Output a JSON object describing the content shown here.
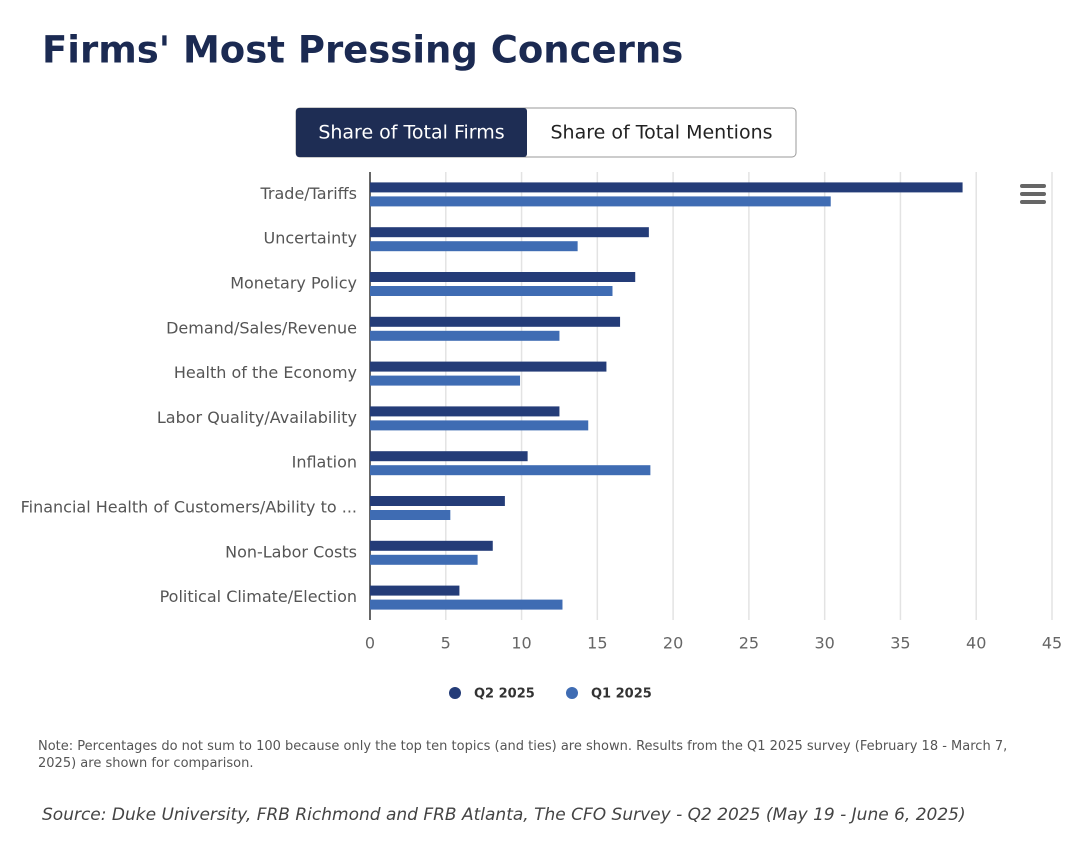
{
  "chart_data": {
    "type": "bar",
    "orientation": "horizontal",
    "title": "Firms' Most Pressing Concerns",
    "toggle": {
      "options": [
        "Share of Total Firms",
        "Share of Total Mentions"
      ],
      "active": 0
    },
    "categories": [
      "Trade/Tariffs",
      "Uncertainty",
      "Monetary Policy",
      "Demand/Sales/Revenue",
      "Health of the Economy",
      "Labor Quality/Availability",
      "Inflation",
      "Financial Health of Customers/Ability to ...",
      "Non-Labor Costs",
      "Political Climate/Election"
    ],
    "series": [
      {
        "name": "Q2 2025",
        "color": "#243c78",
        "values": [
          39.1,
          18.4,
          17.5,
          16.5,
          15.6,
          12.5,
          10.4,
          8.9,
          8.1,
          5.9
        ]
      },
      {
        "name": "Q1 2025",
        "color": "#3f6cb3",
        "values": [
          30.4,
          13.7,
          16.0,
          12.5,
          9.9,
          14.4,
          18.5,
          5.3,
          7.1,
          12.7
        ]
      }
    ],
    "xlim": [
      0,
      45
    ],
    "xticks": [
      0,
      5,
      10,
      15,
      20,
      25,
      30,
      35,
      40,
      45
    ],
    "grid": true,
    "legend": "bottom",
    "note": "Note: Percentages do not sum to 100 because only the top ten topics (and ties) are shown. Results from the Q1 2025 survey (February 18 - March 7, 2025) are shown for comparison.",
    "source": "Source: Duke University, FRB Richmond and FRB Atlanta, The CFO Survey - Q2 2025 (May 19 - June 6, 2025)"
  }
}
